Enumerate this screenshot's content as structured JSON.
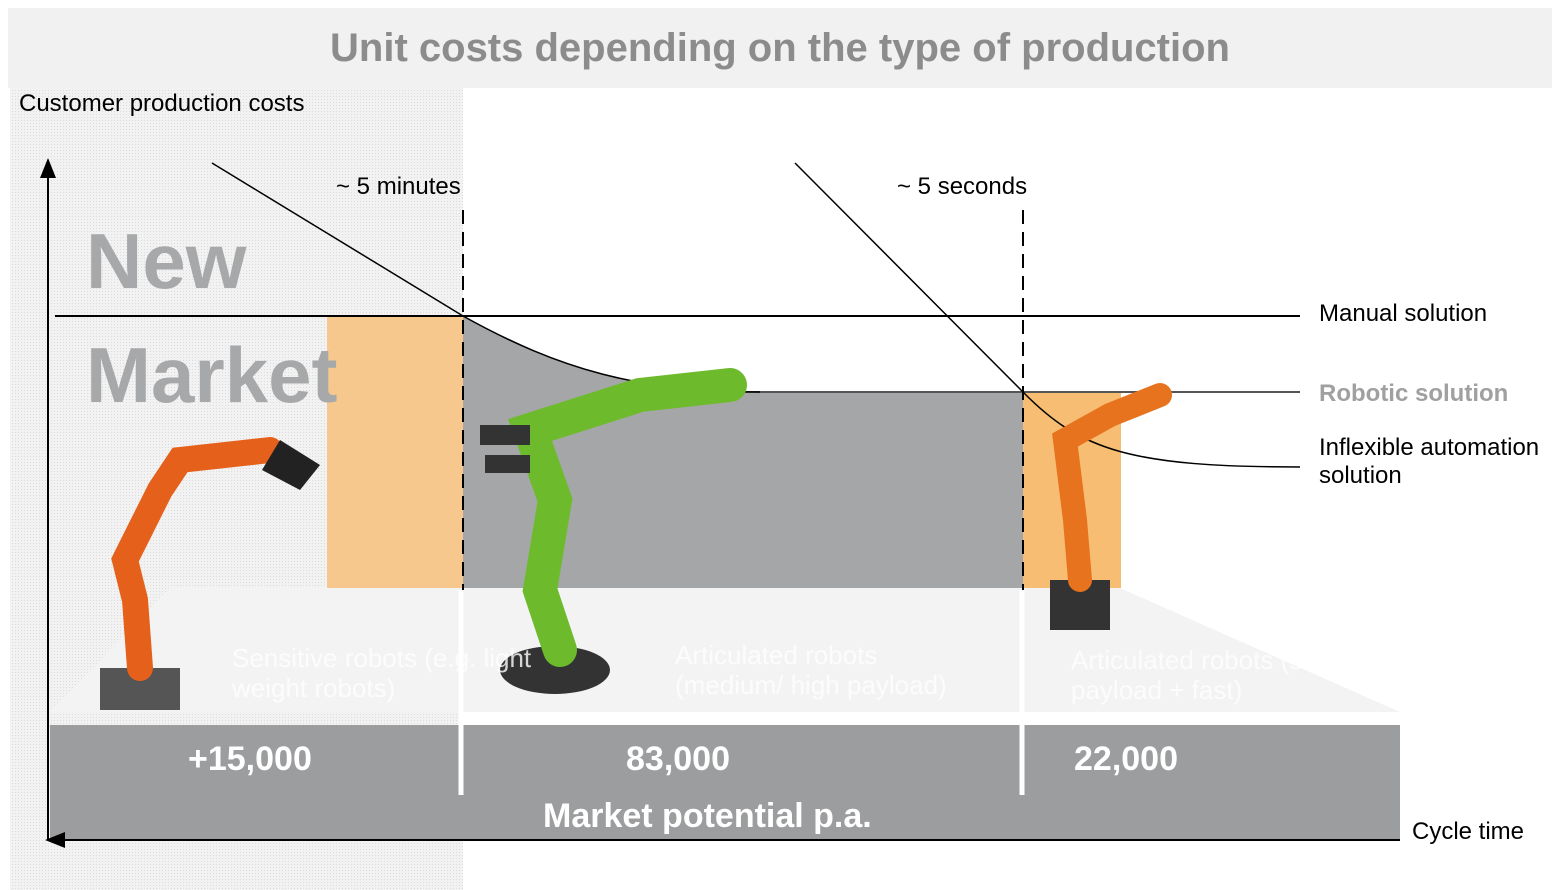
{
  "header": {
    "title": "Unit costs depending on the type of production"
  },
  "axes": {
    "y_label": "Customer production costs",
    "x_label": "Cycle time"
  },
  "thresholds": [
    "~ 5 minutes",
    "~ 5 seconds"
  ],
  "highlight": "New Market",
  "solutions": [
    "Manual solution",
    "Robotic solution",
    "Inflexible automation solution"
  ],
  "segments": [
    {
      "label": "Sensitive robots (e.g. light weight robots)",
      "potential": "+15,000"
    },
    {
      "label": "Articulated robots (medium/ high payload)",
      "potential": "83,000"
    },
    {
      "label": "Articulated robots (small payload + fast)",
      "potential": "22,000"
    }
  ],
  "footer": "Market potential p.a."
}
